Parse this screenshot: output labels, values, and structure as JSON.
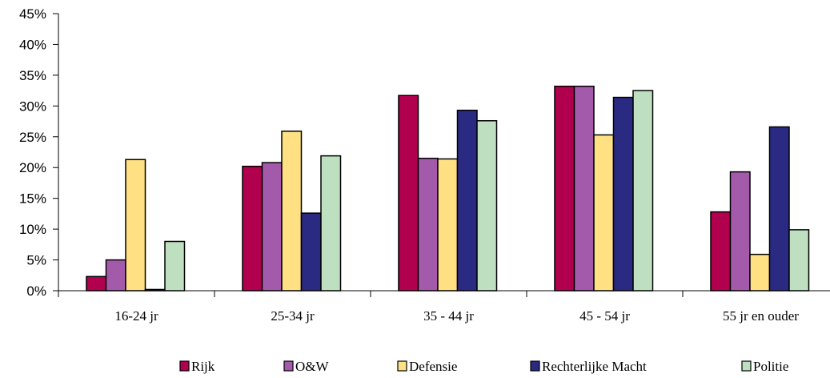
{
  "chart_data": {
    "type": "bar",
    "title": "",
    "xlabel": "",
    "ylabel": "",
    "ylim": [
      0,
      45
    ],
    "y_ticks": [
      "0%",
      "5%",
      "10%",
      "15%",
      "20%",
      "25%",
      "30%",
      "35%",
      "40%",
      "45%"
    ],
    "grid": false,
    "legend_position": "bottom",
    "categories": [
      "16-24 jr",
      "25-34 jr",
      "35 - 44 jr",
      "45 - 54 jr",
      "55 jr en ouder"
    ],
    "series": [
      {
        "name": "Rijk",
        "color": "#B0004E",
        "values": [
          2.3,
          20.2,
          31.7,
          33.2,
          12.8
        ]
      },
      {
        "name": "O&W",
        "color": "#A45AAA",
        "values": [
          5.0,
          20.8,
          21.5,
          33.2,
          19.3
        ]
      },
      {
        "name": "Defensie",
        "color": "#FFE083",
        "values": [
          21.3,
          25.9,
          21.4,
          25.3,
          5.9
        ]
      },
      {
        "name": "Rechterlijke Macht",
        "color": "#2A2A83",
        "values": [
          0.2,
          12.6,
          29.3,
          31.4,
          26.6
        ]
      },
      {
        "name": "Politie",
        "color": "#BEE0C0",
        "values": [
          8.0,
          21.9,
          27.6,
          32.5,
          9.9
        ]
      }
    ]
  }
}
